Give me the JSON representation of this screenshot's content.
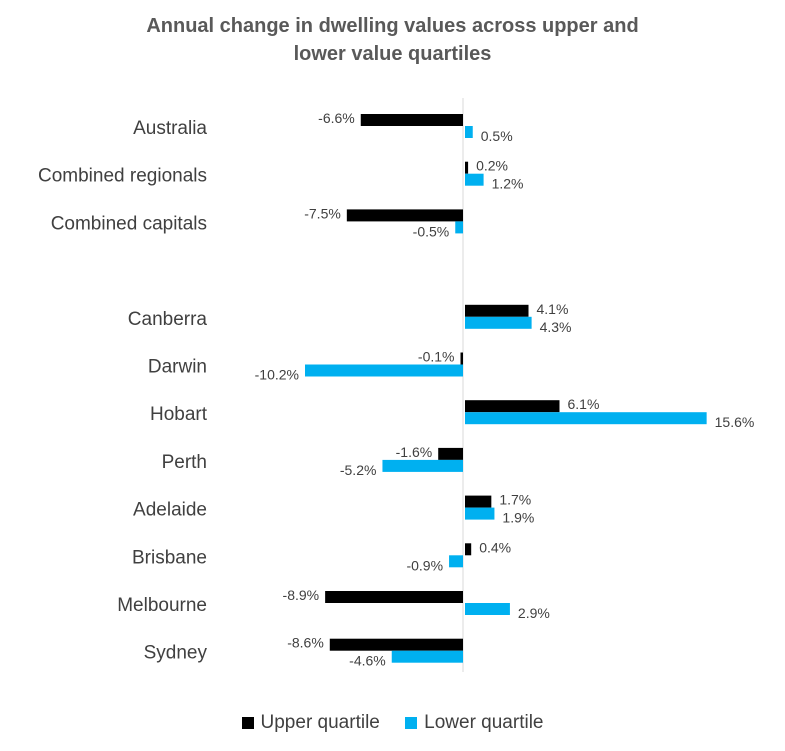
{
  "chart_data": {
    "type": "bar",
    "orientation": "horizontal",
    "title_line1": "Annual change in dwelling values across upper and",
    "title_line2": "lower value quartiles",
    "unit": "%",
    "categories": [
      "Australia",
      "Combined regionals",
      "Combined capitals",
      "",
      "Canberra",
      "Darwin",
      "Hobart",
      "Perth",
      "Adelaide",
      "Brisbane",
      "Melbourne",
      "Sydney"
    ],
    "series": [
      {
        "name": "Upper quartile",
        "color": "#000000",
        "values": [
          -6.6,
          0.2,
          -7.5,
          null,
          4.1,
          -0.1,
          6.1,
          -1.6,
          1.7,
          0.4,
          -8.9,
          -8.6
        ]
      },
      {
        "name": "Lower quartile",
        "color": "#00B0F0",
        "values": [
          0.5,
          1.2,
          -0.5,
          null,
          4.3,
          -10.2,
          15.6,
          -5.2,
          1.9,
          -0.9,
          2.9,
          -4.6
        ]
      }
    ],
    "xlim": [
      -10.2,
      15.6
    ],
    "legend_position": "bottom"
  }
}
